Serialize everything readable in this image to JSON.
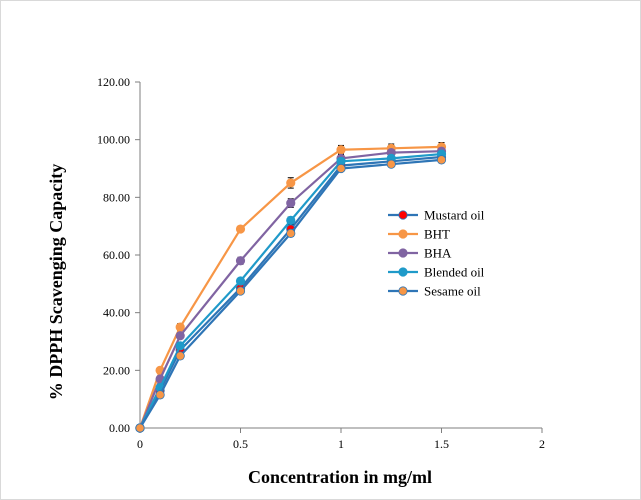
{
  "chart_data": {
    "type": "line",
    "title": "",
    "xlabel": "Concentration in mg/ml",
    "ylabel": "% DPPH Scavenging Capacity",
    "xlim": [
      0,
      2
    ],
    "ylim": [
      0,
      120
    ],
    "x_ticks": [
      "0",
      "0.5",
      "1",
      "1.5",
      "2"
    ],
    "y_ticks": [
      "0.00",
      "20.00",
      "40.00",
      "60.00",
      "80.00",
      "100.00",
      "120.00"
    ],
    "grid": false,
    "legend_position": "right",
    "x": [
      0,
      0.1,
      0.2,
      0.5,
      0.75,
      1,
      1.25,
      1.5
    ],
    "series": [
      {
        "name": "Mustard oil",
        "color": "#ff0000",
        "line_color": "#2e75b6",
        "values": [
          0,
          13,
          27,
          48.5,
          69,
          91,
          92.5,
          94
        ],
        "error": [
          0,
          1,
          1,
          1,
          1.5,
          1,
          1,
          1
        ]
      },
      {
        "name": "BHT",
        "color": "#f79646",
        "line_color": "#f79646",
        "values": [
          0,
          20,
          35,
          69,
          85,
          96.5,
          97,
          97.5
        ],
        "error": [
          0,
          1,
          1.2,
          1,
          1.8,
          1.5,
          1.5,
          1.5
        ]
      },
      {
        "name": "BHA",
        "color": "#8064a2",
        "line_color": "#8064a2",
        "values": [
          0,
          17,
          32,
          58,
          78,
          93.5,
          95.5,
          96
        ],
        "error": [
          0,
          1,
          1,
          1.2,
          1.5,
          1.2,
          1,
          1
        ]
      },
      {
        "name": "Blended oil",
        "color": "#1f9ac9",
        "line_color": "#1f9ac9",
        "values": [
          0,
          14,
          28.5,
          51,
          72,
          92.5,
          93.5,
          95
        ],
        "error": [
          0,
          1,
          1,
          1,
          1.2,
          1,
          1,
          1
        ]
      },
      {
        "name": "Sesame oil",
        "color": "#f79646",
        "line_color": "#2e75b6",
        "values": [
          0,
          11.5,
          25,
          47.5,
          67.5,
          90,
          91.5,
          93
        ],
        "error": [
          0,
          1,
          1,
          1,
          1,
          1,
          1,
          1
        ]
      }
    ]
  }
}
